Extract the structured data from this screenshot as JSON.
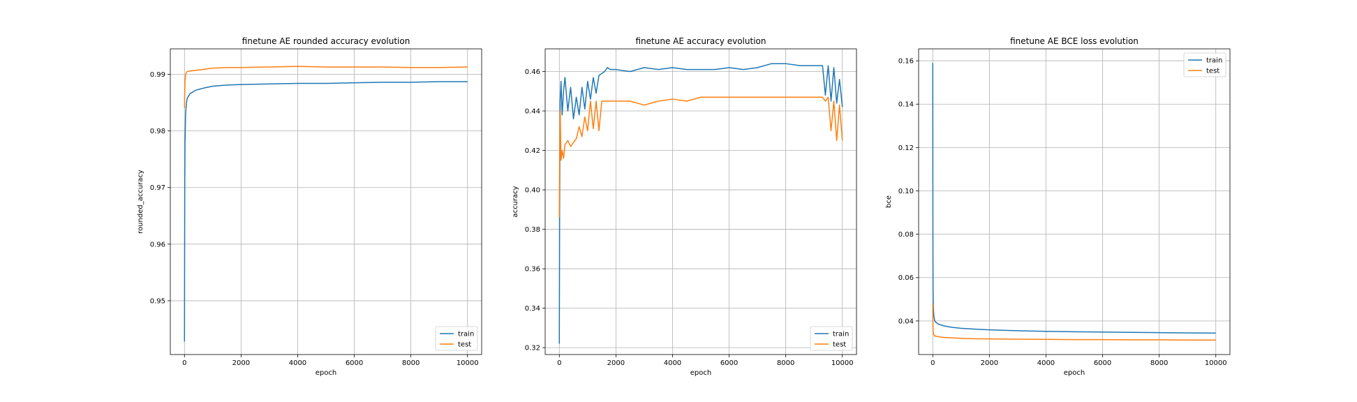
{
  "colors": {
    "train": "#1f77b4",
    "test": "#ff7f0e",
    "grid": "#b0b0b0"
  },
  "chart_data": [
    {
      "type": "line",
      "title": "finetune AE rounded accuracy evolution",
      "xlabel": "epoch",
      "ylabel": "rounded_accuracy",
      "xlim": [
        -500,
        10500
      ],
      "ylim": [
        0.9405,
        0.9945
      ],
      "xticks": [
        0,
        2000,
        4000,
        6000,
        8000,
        10000
      ],
      "xtick_labels": [
        "0",
        "2000",
        "4000",
        "6000",
        "8000",
        "10000"
      ],
      "yticks": [
        0.95,
        0.96,
        0.97,
        0.98,
        0.99
      ],
      "ytick_labels": [
        "0.95",
        "0.96",
        "0.97",
        "0.98",
        "0.99"
      ],
      "grid": true,
      "legend_position": "lower-right",
      "series": [
        {
          "name": "train",
          "x": [
            0,
            10,
            20,
            40,
            70,
            100,
            200,
            400,
            700,
            1000,
            1500,
            2000,
            3000,
            4000,
            5000,
            6000,
            7000,
            8000,
            9000,
            10000
          ],
          "y": [
            0.9428,
            0.97,
            0.978,
            0.983,
            0.985,
            0.9858,
            0.9866,
            0.9872,
            0.9876,
            0.9879,
            0.9881,
            0.9882,
            0.9883,
            0.9884,
            0.9884,
            0.9885,
            0.9886,
            0.9886,
            0.9887,
            0.9887
          ]
        },
        {
          "name": "test",
          "x": [
            0,
            10,
            20,
            40,
            70,
            100,
            200,
            400,
            700,
            1000,
            1500,
            2000,
            3000,
            4000,
            5000,
            6000,
            7000,
            8000,
            9000,
            10000
          ],
          "y": [
            0.984,
            0.987,
            0.989,
            0.99,
            0.9904,
            0.9905,
            0.9906,
            0.9907,
            0.9909,
            0.9911,
            0.9912,
            0.9912,
            0.9913,
            0.9914,
            0.9913,
            0.9913,
            0.9913,
            0.9912,
            0.9912,
            0.9913
          ]
        }
      ]
    },
    {
      "type": "line",
      "title": "finetune AE accuracy evolution",
      "xlabel": "epoch",
      "ylabel": "accuracy",
      "xlim": [
        -500,
        10500
      ],
      "ylim": [
        0.3165,
        0.4715
      ],
      "xticks": [
        0,
        2000,
        4000,
        6000,
        8000,
        10000
      ],
      "xtick_labels": [
        "0",
        "2000",
        "4000",
        "6000",
        "8000",
        "10000"
      ],
      "yticks": [
        0.32,
        0.34,
        0.36,
        0.38,
        0.4,
        0.42,
        0.44,
        0.46
      ],
      "ytick_labels": [
        "0.32",
        "0.34",
        "0.36",
        "0.38",
        "0.40",
        "0.42",
        "0.44",
        "0.46"
      ],
      "grid": true,
      "legend_position": "lower-right",
      "series": [
        {
          "name": "train",
          "x": [
            0,
            10,
            30,
            60,
            100,
            150,
            200,
            300,
            400,
            500,
            600,
            700,
            800,
            900,
            1000,
            1100,
            1200,
            1300,
            1400,
            1500,
            1600,
            1700,
            1800,
            2000,
            2500,
            3000,
            3500,
            4000,
            4500,
            5000,
            5500,
            6000,
            6500,
            7000,
            7500,
            8000,
            8500,
            9000,
            9300,
            9400,
            9500,
            9600,
            9700,
            9800,
            9900,
            10000
          ],
          "y": [
            0.322,
            0.386,
            0.445,
            0.455,
            0.438,
            0.45,
            0.457,
            0.44,
            0.452,
            0.436,
            0.447,
            0.438,
            0.452,
            0.441,
            0.455,
            0.446,
            0.457,
            0.449,
            0.458,
            0.459,
            0.46,
            0.462,
            0.461,
            0.461,
            0.46,
            0.462,
            0.461,
            0.462,
            0.461,
            0.461,
            0.461,
            0.462,
            0.461,
            0.462,
            0.464,
            0.464,
            0.463,
            0.463,
            0.463,
            0.448,
            0.463,
            0.445,
            0.462,
            0.444,
            0.456,
            0.442
          ]
        },
        {
          "name": "test",
          "x": [
            0,
            10,
            30,
            60,
            100,
            150,
            200,
            300,
            400,
            500,
            600,
            700,
            800,
            900,
            1000,
            1100,
            1200,
            1300,
            1400,
            1500,
            2000,
            2500,
            3000,
            3500,
            4000,
            4500,
            5000,
            5500,
            6000,
            6500,
            7000,
            7500,
            8000,
            8500,
            9000,
            9300,
            9400,
            9500,
            9600,
            9700,
            9800,
            9900,
            10000
          ],
          "y": [
            0.386,
            0.41,
            0.44,
            0.415,
            0.42,
            0.416,
            0.423,
            0.425,
            0.422,
            0.424,
            0.426,
            0.432,
            0.427,
            0.437,
            0.43,
            0.445,
            0.431,
            0.445,
            0.43,
            0.445,
            0.445,
            0.445,
            0.443,
            0.445,
            0.446,
            0.445,
            0.447,
            0.447,
            0.447,
            0.447,
            0.447,
            0.447,
            0.447,
            0.447,
            0.447,
            0.447,
            0.445,
            0.447,
            0.43,
            0.445,
            0.425,
            0.443,
            0.425
          ]
        }
      ]
    },
    {
      "type": "line",
      "title": "finetune AE BCE loss evolution",
      "xlabel": "epoch",
      "ylabel": "bce",
      "xlim": [
        -500,
        10500
      ],
      "ylim": [
        0.0245,
        0.1655
      ],
      "xticks": [
        0,
        2000,
        4000,
        6000,
        8000,
        10000
      ],
      "xtick_labels": [
        "0",
        "2000",
        "4000",
        "6000",
        "8000",
        "10000"
      ],
      "yticks": [
        0.04,
        0.06,
        0.08,
        0.1,
        0.12,
        0.14,
        0.16
      ],
      "ytick_labels": [
        "0.04",
        "0.06",
        "0.08",
        "0.10",
        "0.12",
        "0.14",
        "0.16"
      ],
      "grid": true,
      "legend_position": "upper-right",
      "series": [
        {
          "name": "train",
          "x": [
            0,
            5,
            10,
            20,
            40,
            70,
            100,
            200,
            400,
            700,
            1000,
            1500,
            2000,
            3000,
            4000,
            5000,
            6000,
            7000,
            8000,
            9000,
            10000
          ],
          "y": [
            0.159,
            0.08,
            0.055,
            0.046,
            0.042,
            0.04,
            0.0395,
            0.0385,
            0.0377,
            0.037,
            0.0366,
            0.0362,
            0.0359,
            0.0355,
            0.0352,
            0.035,
            0.0349,
            0.0347,
            0.0346,
            0.0345,
            0.0344
          ]
        },
        {
          "name": "test",
          "x": [
            0,
            5,
            10,
            20,
            40,
            70,
            100,
            200,
            400,
            700,
            1000,
            1500,
            2000,
            3000,
            4000,
            5000,
            6000,
            7000,
            8000,
            9000,
            10000
          ],
          "y": [
            0.048,
            0.04,
            0.036,
            0.034,
            0.0335,
            0.0332,
            0.033,
            0.0327,
            0.0324,
            0.0322,
            0.032,
            0.0318,
            0.0317,
            0.0316,
            0.0315,
            0.0314,
            0.0314,
            0.0313,
            0.0313,
            0.0312,
            0.0312
          ]
        }
      ]
    }
  ]
}
